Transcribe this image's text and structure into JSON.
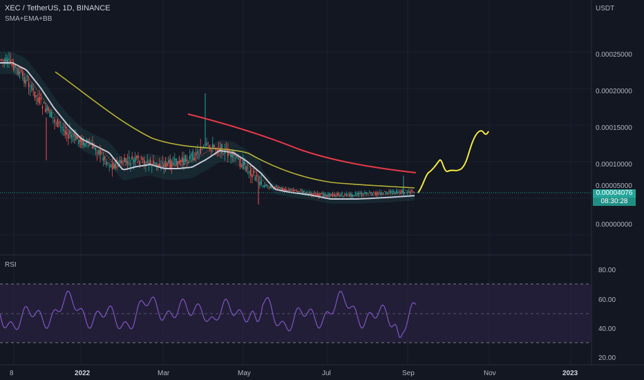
{
  "header": {
    "symbol_line": "XEC / TetherUS, 1D, BINANCE",
    "indicator_label": "SMA+EMA+BB"
  },
  "price_axis": {
    "currency": "USDT",
    "labels": [
      "0.00025000",
      "0.00020000",
      "0.00015000",
      "0.00010000",
      "0.00005000",
      "0.00000000"
    ],
    "current_price": "0.00004076",
    "countdown": "08:30:28"
  },
  "rsi_panel": {
    "label": "RSI",
    "axis_labels": [
      "80.00",
      "60.00",
      "40.00",
      "20.00"
    ],
    "upper_band": 70,
    "middle_band": 50,
    "lower_band": 30
  },
  "time_axis": {
    "labels": [
      "8",
      "2022",
      "Mar",
      "May",
      "Jul",
      "Sep",
      "Nov",
      "2023"
    ]
  },
  "colors": {
    "background": "#131722",
    "up": "#26a69a",
    "down": "#ef5350",
    "sma_line": "#c9c9d6",
    "ema_line": "#b8b334",
    "ma200_line": "#e53946",
    "projection": "#f4ea42",
    "rsi_line": "#7e57c2",
    "rsi_band_fill": "#2a2240"
  }
}
